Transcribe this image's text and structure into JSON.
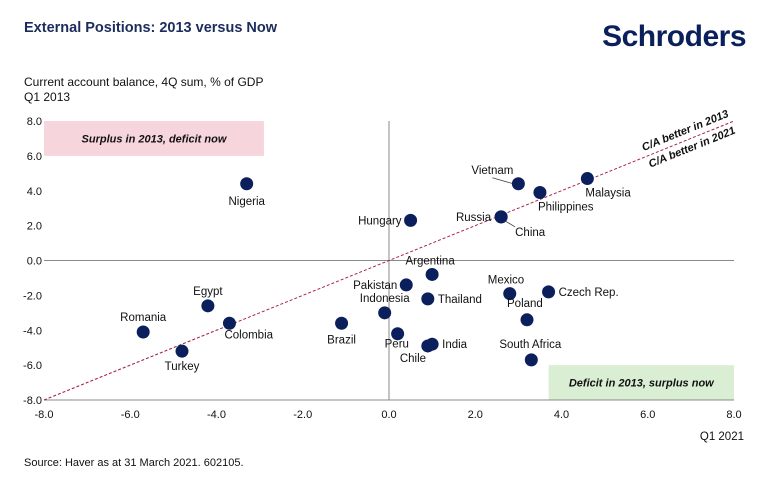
{
  "header": {
    "title": "External Positions: 2013 versus Now",
    "logo_text": "Schroders"
  },
  "y_axis_label_line1": "Current account balance, 4Q sum, % of GDP",
  "y_axis_label_line2": "Q1 2013",
  "source": "Source: Haver as at 31 March 2021. 602105.",
  "colors": {
    "point": "#0b1f5c",
    "line": "#a51d4b",
    "surplus_box": "#f6d5dc",
    "deficit_box": "#daeed3"
  },
  "chart_data": {
    "type": "scatter",
    "xlabel": "Q1 2021",
    "ylabel": "Current account balance, 4Q sum, % of GDP Q1 2013",
    "xlim": [
      -8,
      8
    ],
    "ylim": [
      -8,
      8
    ],
    "x_ticks": [
      "-8.0",
      "-6.0",
      "-4.0",
      "-2.0",
      "0.0",
      "2.0",
      "4.0",
      "6.0",
      "8.0"
    ],
    "y_ticks": [
      "8.0",
      "6.0",
      "4.0",
      "2.0",
      "0.0",
      "-2.0",
      "-4.0",
      "-6.0",
      "-8.0"
    ],
    "grid": false,
    "points": [
      {
        "label": "Nigeria",
        "x": -3.3,
        "y": 4.4
      },
      {
        "label": "Vietnam",
        "x": 3.0,
        "y": 4.4
      },
      {
        "label": "Malaysia",
        "x": 4.6,
        "y": 4.7
      },
      {
        "label": "Philippines",
        "x": 3.5,
        "y": 3.9
      },
      {
        "label": "Russia",
        "x": 2.6,
        "y": 2.5
      },
      {
        "label": "China",
        "x": 2.6,
        "y": 2.5
      },
      {
        "label": "Hungary",
        "x": 0.5,
        "y": 2.3
      },
      {
        "label": "Argentina",
        "x": 1.0,
        "y": -0.8
      },
      {
        "label": "Pakistan",
        "x": 0.4,
        "y": -1.4
      },
      {
        "label": "Mexico",
        "x": 2.8,
        "y": -1.9
      },
      {
        "label": "Czech Rep.",
        "x": 3.7,
        "y": -1.8
      },
      {
        "label": "Thailand",
        "x": 0.9,
        "y": -2.2
      },
      {
        "label": "Indonesia",
        "x": -0.1,
        "y": -3.0
      },
      {
        "label": "Poland",
        "x": 3.2,
        "y": -3.4
      },
      {
        "label": "Egypt",
        "x": -4.2,
        "y": -2.6
      },
      {
        "label": "Romania",
        "x": -5.7,
        "y": -4.1
      },
      {
        "label": "Colombia",
        "x": -3.7,
        "y": -3.6
      },
      {
        "label": "Brazil",
        "x": -1.1,
        "y": -3.6
      },
      {
        "label": "Peru",
        "x": 0.2,
        "y": -4.2
      },
      {
        "label": "Chile",
        "x": 0.9,
        "y": -4.9
      },
      {
        "label": "India",
        "x": 1.0,
        "y": -4.8
      },
      {
        "label": "Turkey",
        "x": -4.8,
        "y": -5.2
      },
      {
        "label": "South Africa",
        "x": 3.3,
        "y": -5.7
      }
    ],
    "reference_line": {
      "label_above": "C/A better in 2013",
      "label_below": "C/A better in 2021",
      "slope": 1,
      "intercept": 0
    },
    "annotations": [
      {
        "text": "Surplus in 2013, deficit now",
        "x_range": [
          -8,
          -2.9
        ],
        "y_range": [
          6,
          8
        ]
      },
      {
        "text": "Deficit in 2013, surplus now",
        "x_range": [
          3.7,
          8
        ],
        "y_range": [
          -8,
          -6
        ]
      }
    ]
  }
}
